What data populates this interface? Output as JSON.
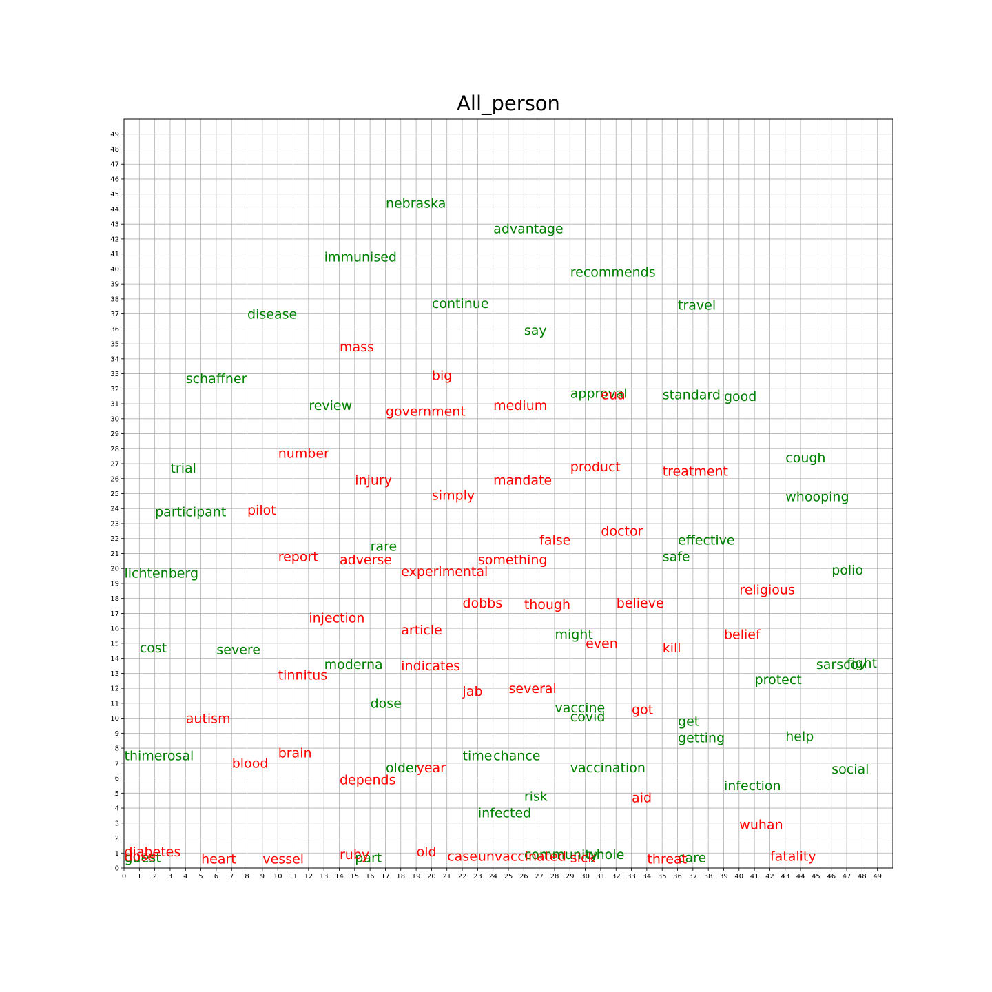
{
  "chart_data": {
    "type": "scatter",
    "title": "All_person",
    "xlabel": "",
    "ylabel": "",
    "xlim": [
      0,
      50
    ],
    "ylim": [
      0,
      50
    ],
    "grid": true,
    "xticks": [
      0,
      1,
      2,
      3,
      4,
      5,
      6,
      7,
      8,
      9,
      10,
      11,
      12,
      13,
      14,
      15,
      16,
      17,
      18,
      19,
      20,
      21,
      22,
      23,
      24,
      25,
      26,
      27,
      28,
      29,
      30,
      31,
      32,
      33,
      34,
      35,
      36,
      37,
      38,
      39,
      40,
      41,
      42,
      43,
      44,
      45,
      46,
      47,
      48,
      49
    ],
    "yticks": [
      0,
      1,
      2,
      3,
      4,
      5,
      6,
      7,
      8,
      9,
      10,
      11,
      12,
      13,
      14,
      15,
      16,
      17,
      18,
      19,
      20,
      21,
      22,
      23,
      24,
      25,
      26,
      27,
      28,
      29,
      30,
      31,
      32,
      33,
      34,
      35,
      36,
      37,
      38,
      39,
      40,
      41,
      42,
      43,
      44,
      45,
      46,
      47,
      48,
      49
    ],
    "series": [
      {
        "name": "green",
        "color": "#008000",
        "points": [
          {
            "label": "nebraska",
            "x": 17,
            "y": 44
          },
          {
            "label": "advantage",
            "x": 24,
            "y": 42.3
          },
          {
            "label": "immunised",
            "x": 13,
            "y": 40.4
          },
          {
            "label": "recommends",
            "x": 29,
            "y": 39.4
          },
          {
            "label": "continue",
            "x": 20,
            "y": 37.3
          },
          {
            "label": "travel",
            "x": 36,
            "y": 37.2
          },
          {
            "label": "disease",
            "x": 8,
            "y": 36.6
          },
          {
            "label": "say",
            "x": 26,
            "y": 35.5
          },
          {
            "label": "schaffner",
            "x": 4,
            "y": 32.3
          },
          {
            "label": "approval",
            "x": 29,
            "y": 31.3
          },
          {
            "label": "standard",
            "x": 35,
            "y": 31.2
          },
          {
            "label": "good",
            "x": 39,
            "y": 31.1
          },
          {
            "label": "review",
            "x": 12,
            "y": 30.5
          },
          {
            "label": "cough",
            "x": 43,
            "y": 27
          },
          {
            "label": "trial",
            "x": 3,
            "y": 26.3
          },
          {
            "label": "whooping",
            "x": 43,
            "y": 24.4
          },
          {
            "label": "participant",
            "x": 2,
            "y": 23.4
          },
          {
            "label": "effective",
            "x": 36,
            "y": 21.5
          },
          {
            "label": "rare",
            "x": 16,
            "y": 21.1
          },
          {
            "label": "safe",
            "x": 35,
            "y": 20.4
          },
          {
            "label": "lichtenberg",
            "x": 0,
            "y": 19.3
          },
          {
            "label": "polio",
            "x": 46,
            "y": 19.5
          },
          {
            "label": "might",
            "x": 28,
            "y": 15.2
          },
          {
            "label": "cost",
            "x": 1,
            "y": 14.3
          },
          {
            "label": "severe",
            "x": 6,
            "y": 14.2
          },
          {
            "label": "moderna",
            "x": 13,
            "y": 13.2
          },
          {
            "label": "sarscov",
            "x": 45,
            "y": 13.2
          },
          {
            "label": "fight",
            "x": 47,
            "y": 13.3
          },
          {
            "label": "protect",
            "x": 41,
            "y": 12.2
          },
          {
            "label": "dose",
            "x": 16,
            "y": 10.6
          },
          {
            "label": "vaccine",
            "x": 28,
            "y": 10.3
          },
          {
            "label": "covid",
            "x": 29,
            "y": 9.7
          },
          {
            "label": "get",
            "x": 36,
            "y": 9.4
          },
          {
            "label": "getting",
            "x": 36,
            "y": 8.3
          },
          {
            "label": "help",
            "x": 43,
            "y": 8.4
          },
          {
            "label": "thimerosal",
            "x": 0,
            "y": 7.1
          },
          {
            "label": "time",
            "x": 22,
            "y": 7.1
          },
          {
            "label": "chance",
            "x": 24,
            "y": 7.1
          },
          {
            "label": "older",
            "x": 17,
            "y": 6.3
          },
          {
            "label": "vaccination",
            "x": 29,
            "y": 6.3
          },
          {
            "label": "social",
            "x": 46,
            "y": 6.2
          },
          {
            "label": "infection",
            "x": 39,
            "y": 5.1
          },
          {
            "label": "risk",
            "x": 26,
            "y": 4.4
          },
          {
            "label": "infected",
            "x": 23,
            "y": 3.3
          },
          {
            "label": "community",
            "x": 26,
            "y": 0.5
          },
          {
            "label": "whole",
            "x": 30,
            "y": 0.5
          },
          {
            "label": "part",
            "x": 15,
            "y": 0.3
          },
          {
            "label": "care",
            "x": 36,
            "y": 0.3
          },
          {
            "label": "guest",
            "x": 0,
            "y": 0.3
          }
        ]
      },
      {
        "name": "red",
        "color": "#ff0000",
        "points": [
          {
            "label": "mass",
            "x": 14,
            "y": 34.4
          },
          {
            "label": "big",
            "x": 20,
            "y": 32.5
          },
          {
            "label": "eua",
            "x": 31,
            "y": 31.2
          },
          {
            "label": "medium",
            "x": 24,
            "y": 30.5
          },
          {
            "label": "government",
            "x": 17,
            "y": 30.1
          },
          {
            "label": "number",
            "x": 10,
            "y": 27.3
          },
          {
            "label": "product",
            "x": 29,
            "y": 26.4
          },
          {
            "label": "treatment",
            "x": 35,
            "y": 26.1
          },
          {
            "label": "injury",
            "x": 15,
            "y": 25.5
          },
          {
            "label": "mandate",
            "x": 24,
            "y": 25.5
          },
          {
            "label": "simply",
            "x": 20,
            "y": 24.5
          },
          {
            "label": "pilot",
            "x": 8,
            "y": 23.5
          },
          {
            "label": "doctor",
            "x": 31,
            "y": 22.1
          },
          {
            "label": "false",
            "x": 27,
            "y": 21.5
          },
          {
            "label": "report",
            "x": 10,
            "y": 20.4
          },
          {
            "label": "adverse",
            "x": 14,
            "y": 20.2
          },
          {
            "label": "something",
            "x": 23,
            "y": 20.2
          },
          {
            "label": "experimental",
            "x": 18,
            "y": 19.4
          },
          {
            "label": "religious",
            "x": 40,
            "y": 18.2
          },
          {
            "label": "dobbs",
            "x": 22,
            "y": 17.3
          },
          {
            "label": "believe",
            "x": 32,
            "y": 17.3
          },
          {
            "label": "though",
            "x": 26,
            "y": 17.2
          },
          {
            "label": "injection",
            "x": 12,
            "y": 16.3
          },
          {
            "label": "article",
            "x": 18,
            "y": 15.5
          },
          {
            "label": "belief",
            "x": 39,
            "y": 15.2
          },
          {
            "label": "even",
            "x": 30,
            "y": 14.6
          },
          {
            "label": "kill",
            "x": 35,
            "y": 14.3
          },
          {
            "label": "indicates",
            "x": 18,
            "y": 13.1
          },
          {
            "label": "tinnitus",
            "x": 10,
            "y": 12.5
          },
          {
            "label": "several",
            "x": 25,
            "y": 11.6
          },
          {
            "label": "jab",
            "x": 22,
            "y": 11.4
          },
          {
            "label": "got",
            "x": 33,
            "y": 10.2
          },
          {
            "label": "autism",
            "x": 4,
            "y": 9.6
          },
          {
            "label": "brain",
            "x": 10,
            "y": 7.3
          },
          {
            "label": "blood",
            "x": 7,
            "y": 6.6
          },
          {
            "label": "year",
            "x": 19,
            "y": 6.3
          },
          {
            "label": "depends",
            "x": 14,
            "y": 5.5
          },
          {
            "label": "aid",
            "x": 33,
            "y": 4.3
          },
          {
            "label": "wuhan",
            "x": 40,
            "y": 2.5
          },
          {
            "label": "diabetes",
            "x": 0,
            "y": 0.7
          },
          {
            "label": "old",
            "x": 19,
            "y": 0.7
          },
          {
            "label": "ruby",
            "x": 14,
            "y": 0.5
          },
          {
            "label": "case",
            "x": 21,
            "y": 0.4
          },
          {
            "label": "unvaccinated",
            "x": 23,
            "y": 0.4
          },
          {
            "label": "sick",
            "x": 29,
            "y": 0.3
          },
          {
            "label": "fatality",
            "x": 42,
            "y": 0.4
          },
          {
            "label": "heart",
            "x": 5,
            "y": 0.2
          },
          {
            "label": "vessel",
            "x": 9,
            "y": 0.2
          },
          {
            "label": "threat",
            "x": 34,
            "y": 0.2
          },
          {
            "label": "dose",
            "x": 0,
            "y": 0.4
          }
        ]
      }
    ]
  }
}
